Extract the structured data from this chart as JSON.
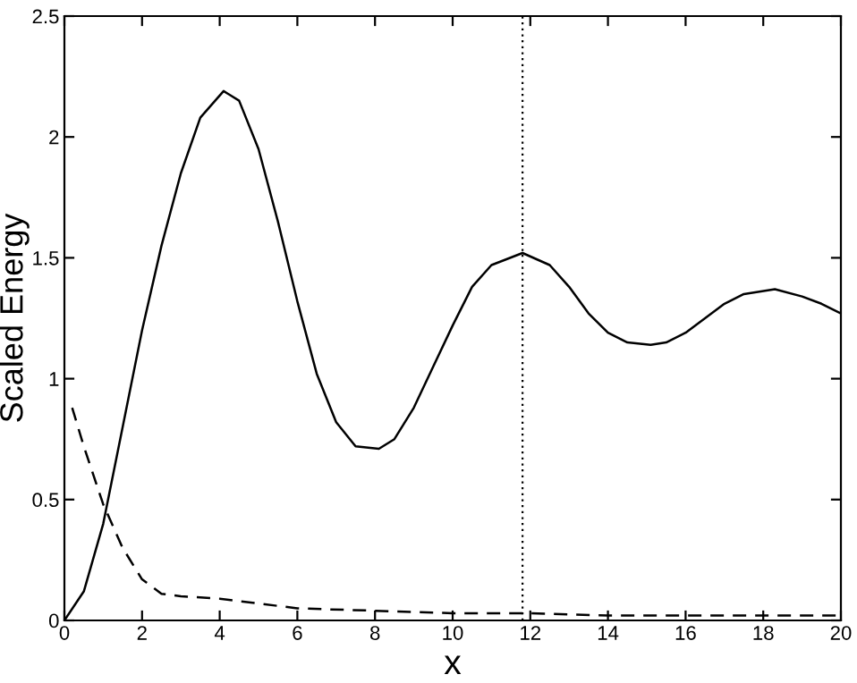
{
  "chart_data": {
    "type": "line",
    "xlabel": "x",
    "ylabel": "Scaled Energy",
    "xlim": [
      0,
      20
    ],
    "ylim": [
      0,
      2.5
    ],
    "xticks": [
      0,
      2,
      4,
      6,
      8,
      10,
      12,
      14,
      16,
      18,
      20
    ],
    "yticks": [
      0,
      0.5,
      1,
      1.5,
      2,
      2.5
    ],
    "grid": false,
    "marker": "none",
    "series": [
      {
        "color": "#000000",
        "line_style": "solid",
        "x": [
          0,
          0.5,
          1,
          1.5,
          2,
          2.5,
          3,
          3.5,
          4.1,
          4.5,
          5,
          5.5,
          6,
          6.5,
          7,
          7.5,
          8.1,
          8.5,
          9,
          9.5,
          10,
          10.5,
          11,
          11.8,
          12.5,
          13,
          13.5,
          14,
          14.5,
          15.1,
          15.5,
          16,
          16.5,
          17,
          17.5,
          18.3,
          19,
          19.5,
          20
        ],
        "values": [
          0,
          0.12,
          0.4,
          0.8,
          1.2,
          1.55,
          1.85,
          2.08,
          2.19,
          2.15,
          1.95,
          1.65,
          1.32,
          1.02,
          0.82,
          0.72,
          0.71,
          0.75,
          0.88,
          1.05,
          1.22,
          1.38,
          1.47,
          1.52,
          1.47,
          1.38,
          1.27,
          1.19,
          1.15,
          1.14,
          1.15,
          1.19,
          1.25,
          1.31,
          1.35,
          1.37,
          1.34,
          1.31,
          1.27
        ]
      },
      {
        "color": "#000000",
        "line_style": "dashed",
        "x": [
          0.2,
          0.5,
          1,
          1.5,
          2,
          2.5,
          3,
          4,
          5,
          6,
          8,
          10,
          12,
          14,
          16,
          20
        ],
        "values": [
          0.88,
          0.72,
          0.48,
          0.3,
          0.17,
          0.11,
          0.1,
          0.09,
          0.07,
          0.05,
          0.04,
          0.03,
          0.03,
          0.02,
          0.02,
          0.02
        ]
      }
    ],
    "ref_lines": [
      {
        "axis": "x",
        "value": 11.8,
        "label": null,
        "color": "#000000",
        "line_style": "dotted"
      }
    ]
  }
}
